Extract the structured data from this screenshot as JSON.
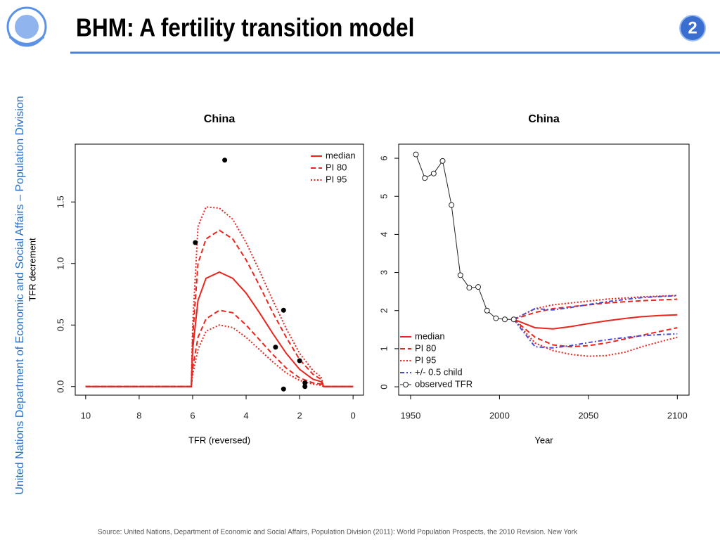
{
  "header": {
    "title": "BHM: A fertility transition model",
    "page_number": "2"
  },
  "sidebar": "United Nations Department of Economic and Social Affairs – Population Division",
  "footer": "Source: United Nations, Department of Economic and Social Affairs, Population Division (2011): World Population Prospects, the 2010 Revision. New York",
  "chart_data": [
    {
      "type": "line",
      "title": "China",
      "x_label": "TFR (reversed)",
      "y_label": "TFR decrement",
      "x": [
        10,
        8,
        6.05,
        6,
        5.8,
        5.5,
        5,
        4.5,
        4,
        3.5,
        3,
        2.5,
        2,
        1.5,
        1.2,
        1.1,
        0
      ],
      "xlim": [
        10.39,
        -0.39
      ],
      "xticks": [
        10,
        8,
        6,
        4,
        2,
        0
      ],
      "ylim": [
        -0.07,
        1.97
      ],
      "yticks": [
        {
          "value": 0,
          "label": "0.0"
        },
        {
          "value": 0.5,
          "label": "0.5"
        },
        {
          "value": 1,
          "label": "1.0"
        },
        {
          "value": 1.5,
          "label": "1.5"
        }
      ],
      "legend": "top-right",
      "series": [
        {
          "name": "median",
          "color": "#e8251e",
          "style": "solid",
          "values": [
            0,
            0,
            0,
            0.3,
            0.7,
            0.88,
            0.93,
            0.88,
            0.76,
            0.6,
            0.43,
            0.27,
            0.14,
            0.06,
            0.04,
            0,
            0
          ]
        },
        {
          "name": "PI 80",
          "color": "#e8251e",
          "style": "dashed",
          "upper": [
            0,
            0,
            0,
            0.4,
            1.0,
            1.2,
            1.27,
            1.2,
            1.03,
            0.82,
            0.6,
            0.4,
            0.22,
            0.1,
            0.06,
            0,
            0
          ],
          "lower": [
            0,
            0,
            0,
            0.15,
            0.4,
            0.55,
            0.62,
            0.6,
            0.5,
            0.38,
            0.26,
            0.15,
            0.07,
            0.03,
            0.02,
            0,
            0
          ]
        },
        {
          "name": "PI 95",
          "color": "#e8251e",
          "style": "dotted",
          "upper": [
            0,
            0,
            0,
            0.5,
            1.3,
            1.46,
            1.45,
            1.36,
            1.17,
            0.94,
            0.7,
            0.47,
            0.27,
            0.13,
            0.08,
            0,
            0
          ],
          "lower": [
            0,
            0,
            0,
            0.1,
            0.3,
            0.45,
            0.5,
            0.48,
            0.4,
            0.3,
            0.2,
            0.11,
            0.05,
            0.02,
            0.01,
            0,
            0
          ]
        }
      ],
      "points": {
        "color": "#000000",
        "x": [
          5.9,
          4.8,
          2.6,
          2.9,
          2.0,
          1.8,
          1.8,
          2.6
        ],
        "values": [
          1.17,
          1.84,
          0.62,
          0.32,
          0.21,
          0.03,
          0.0,
          -0.02
        ]
      }
    },
    {
      "type": "line",
      "title": "China",
      "x_label": "Year",
      "x": [
        2008,
        2020,
        2030,
        2040,
        2050,
        2060,
        2070,
        2080,
        2090,
        2100
      ],
      "xlim": [
        1943.3,
        2106.6
      ],
      "xticks": [
        1950,
        2000,
        2050,
        2100
      ],
      "ylim": [
        -0.22,
        6.37
      ],
      "yticks": [
        0,
        1,
        2,
        3,
        4,
        5,
        6
      ],
      "legend": "bottom-left",
      "series": [
        {
          "name": "median",
          "color": "#e8251e",
          "style": "solid",
          "values": [
            1.77,
            1.55,
            1.52,
            1.58,
            1.66,
            1.73,
            1.79,
            1.84,
            1.87,
            1.89
          ]
        },
        {
          "name": "PI 80",
          "color": "#e8251e",
          "style": "dashed",
          "upper": [
            1.77,
            1.95,
            2.05,
            2.1,
            2.15,
            2.2,
            2.23,
            2.26,
            2.28,
            2.3
          ],
          "lower": [
            1.77,
            1.3,
            1.1,
            1.05,
            1.08,
            1.15,
            1.25,
            1.35,
            1.45,
            1.55
          ]
        },
        {
          "name": "PI 95",
          "color": "#e8251e",
          "style": "dotted",
          "upper": [
            1.77,
            2.05,
            2.15,
            2.2,
            2.25,
            2.3,
            2.33,
            2.36,
            2.38,
            2.4
          ],
          "lower": [
            1.77,
            1.15,
            0.95,
            0.85,
            0.8,
            0.82,
            0.9,
            1.05,
            1.18,
            1.3
          ]
        },
        {
          "name": "+/- 0.5 child",
          "color": "#4a4ad0",
          "style": "dashdot",
          "upper": [
            1.77,
            2.05,
            2.02,
            2.08,
            2.16,
            2.23,
            2.29,
            2.34,
            2.37,
            2.39
          ],
          "lower": [
            1.77,
            1.05,
            1.02,
            1.08,
            1.16,
            1.23,
            1.29,
            1.34,
            1.37,
            1.39
          ]
        },
        {
          "name": "observed TFR",
          "color": "#222222",
          "style": "points-line",
          "x": [
            1953,
            1958,
            1963,
            1968,
            1973,
            1978,
            1983,
            1988,
            1993,
            1998,
            2003,
            2008
          ],
          "values": [
            6.1,
            5.48,
            5.6,
            5.93,
            4.77,
            2.93,
            2.6,
            2.62,
            2.0,
            1.8,
            1.77,
            1.77
          ]
        }
      ]
    }
  ]
}
